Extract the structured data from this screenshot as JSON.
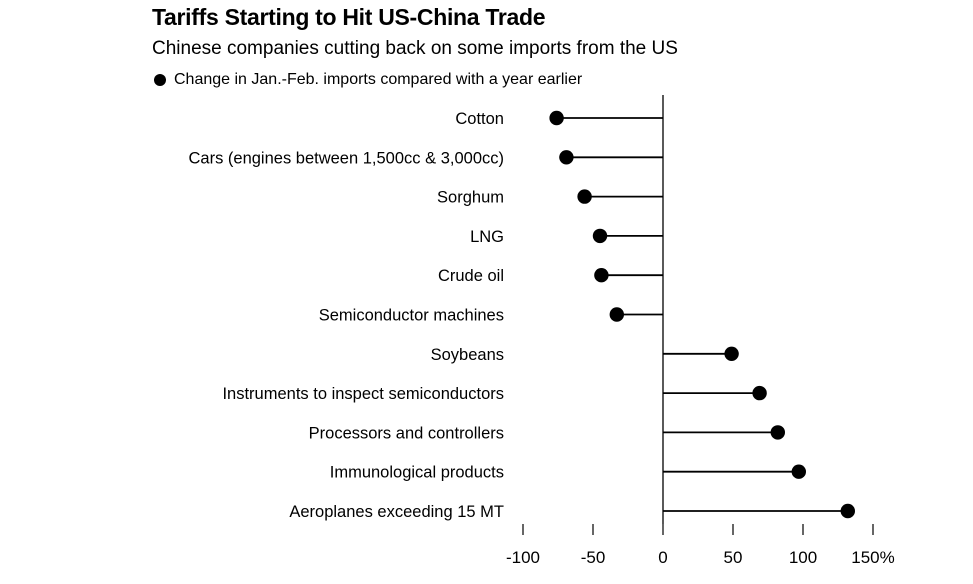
{
  "chart_data": {
    "type": "dot",
    "title": "Tariffs Starting to Hit US-China Trade",
    "subtitle": "Chinese companies cutting back on some imports from the US",
    "legend": "Change in Jan.-Feb. imports compared with a year earlier",
    "categories": [
      "Cotton",
      "Cars (engines between 1,500cc & 3,000cc)",
      "Sorghum",
      "LNG",
      "Crude oil",
      "Semiconductor machines",
      "Soybeans",
      "Instruments to inspect semiconductors",
      "Processors and controllers",
      "Immunological products",
      "Aeroplanes exceeding 15 MT"
    ],
    "values": [
      -76,
      -69,
      -56,
      -45,
      -44,
      -33,
      49,
      69,
      82,
      97,
      132
    ],
    "xlim": [
      -100,
      150
    ],
    "xticks": [
      -100,
      -50,
      0,
      50,
      100,
      150
    ],
    "xtick_labels": [
      "-100",
      "-50",
      "0",
      "50",
      "100",
      "150%"
    ],
    "grid": false
  }
}
